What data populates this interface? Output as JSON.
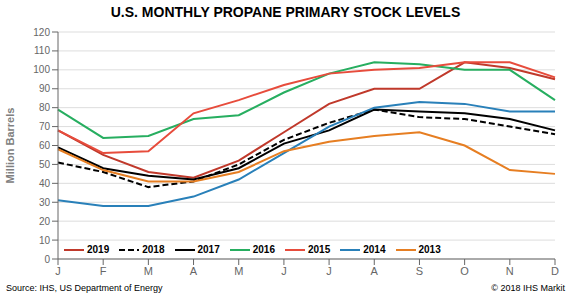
{
  "chart_data": {
    "type": "line",
    "title": "U.S. MONTHLY PROPANE PRIMARY STOCK LEVELS",
    "ylabel": "Million Barrels",
    "annotations": [
      "Source: IHS, US Department of Energy",
      "© 2018 IHS Markit"
    ],
    "categories": [
      "J",
      "F",
      "M",
      "A",
      "M",
      "J",
      "J",
      "A",
      "S",
      "O",
      "N",
      "D"
    ],
    "series": [
      {
        "name": "2019",
        "color": "#c0392b",
        "line_style": "solid",
        "values": [
          68,
          55,
          46,
          43,
          52,
          67,
          82,
          90,
          90,
          104,
          101,
          95
        ]
      },
      {
        "name": "2018",
        "color": "#000000",
        "line_style": "dashed",
        "values": [
          51,
          46,
          38,
          41,
          50,
          63,
          72,
          79,
          75,
          74,
          70,
          66
        ]
      },
      {
        "name": "2017",
        "color": "#000000",
        "line_style": "solid",
        "values": [
          59,
          48,
          44,
          42,
          48,
          61,
          68,
          79,
          78,
          77,
          74,
          68
        ]
      },
      {
        "name": "2016",
        "color": "#27ae60",
        "line_style": "solid",
        "values": [
          79,
          64,
          65,
          74,
          76,
          88,
          98,
          104,
          103,
          100,
          100,
          84
        ]
      },
      {
        "name": "2015",
        "color": "#e74c3c",
        "line_style": "solid",
        "values": [
          68,
          56,
          57,
          77,
          84,
          92,
          98,
          100,
          101,
          104,
          104,
          96
        ]
      },
      {
        "name": "2014",
        "color": "#2980b9",
        "line_style": "solid",
        "values": [
          31,
          28,
          28,
          33,
          42,
          56,
          70,
          80,
          83,
          82,
          78,
          78
        ]
      },
      {
        "name": "2013",
        "color": "#e67e22",
        "line_style": "solid",
        "values": [
          58,
          47,
          41,
          41,
          46,
          57,
          62,
          65,
          67,
          60,
          47,
          45
        ]
      }
    ],
    "ylim": [
      0,
      120
    ],
    "yticks": [
      0,
      10,
      20,
      30,
      40,
      50,
      60,
      70,
      80,
      90,
      100,
      110,
      120
    ],
    "grid": true,
    "legend": "lower left"
  }
}
